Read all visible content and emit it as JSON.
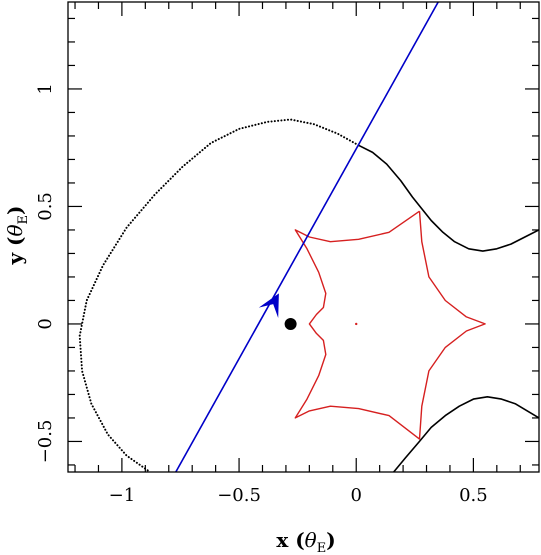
{
  "chart_data": {
    "type": "line",
    "title": "",
    "xlabel": {
      "main": "x (",
      "greek": "θ",
      "sub": "E",
      "close": ")"
    },
    "ylabel": {
      "main": "y (",
      "greek": "θ",
      "sub": "E",
      "close": ")"
    },
    "xlim": [
      -1.23,
      0.78
    ],
    "ylim": [
      -0.63,
      1.37
    ],
    "x_ticks": [
      {
        "value": -1,
        "label": "−1"
      },
      {
        "value": -0.5,
        "label": "−0.5"
      },
      {
        "value": 0,
        "label": "0"
      },
      {
        "value": 0.5,
        "label": "0.5"
      }
    ],
    "y_ticks": [
      {
        "value": -0.5,
        "label": "−0.5"
      },
      {
        "value": 0,
        "label": "0"
      },
      {
        "value": 0.5,
        "label": "0.5"
      },
      {
        "value": 1,
        "label": "1"
      }
    ],
    "minor_tick_step": 0.1,
    "grid": false,
    "colors": {
      "caustic": "#d62020",
      "critical_curve": "#000000",
      "trajectory": "#0000c8",
      "lens": "#000000"
    },
    "series": [
      {
        "role": "critical-curve-dotted",
        "style": "dotted",
        "points": [
          [
            0.01,
            0.76
          ],
          [
            -0.08,
            0.81
          ],
          [
            -0.18,
            0.85
          ],
          [
            -0.28,
            0.87
          ],
          [
            -0.38,
            0.86
          ],
          [
            -0.5,
            0.83
          ],
          [
            -0.62,
            0.77
          ],
          [
            -0.74,
            0.67
          ],
          [
            -0.86,
            0.55
          ],
          [
            -0.98,
            0.41
          ],
          [
            -1.08,
            0.25
          ],
          [
            -1.15,
            0.1
          ],
          [
            -1.18,
            -0.05
          ],
          [
            -1.17,
            -0.2
          ],
          [
            -1.13,
            -0.34
          ],
          [
            -1.06,
            -0.47
          ],
          [
            -0.98,
            -0.56
          ],
          [
            -0.88,
            -0.63
          ]
        ]
      },
      {
        "role": "critical-curve-upper",
        "style": "solid",
        "points": [
          [
            0.01,
            0.76
          ],
          [
            0.07,
            0.73
          ],
          [
            0.13,
            0.68
          ],
          [
            0.19,
            0.61
          ],
          [
            0.24,
            0.54
          ],
          [
            0.28,
            0.49
          ],
          [
            0.32,
            0.44
          ],
          [
            0.37,
            0.39
          ],
          [
            0.42,
            0.35
          ],
          [
            0.48,
            0.32
          ],
          [
            0.54,
            0.31
          ],
          [
            0.6,
            0.32
          ],
          [
            0.66,
            0.34
          ],
          [
            0.72,
            0.37
          ],
          [
            0.78,
            0.4
          ]
        ]
      },
      {
        "role": "critical-curve-lower",
        "style": "solid",
        "points": [
          [
            0.16,
            -0.63
          ],
          [
            0.21,
            -0.57
          ],
          [
            0.27,
            -0.5
          ],
          [
            0.32,
            -0.44
          ],
          [
            0.38,
            -0.39
          ],
          [
            0.44,
            -0.35
          ],
          [
            0.5,
            -0.32
          ],
          [
            0.56,
            -0.31
          ],
          [
            0.62,
            -0.32
          ],
          [
            0.68,
            -0.34
          ],
          [
            0.73,
            -0.37
          ],
          [
            0.78,
            -0.4
          ]
        ]
      },
      {
        "role": "caustic",
        "style": "solid",
        "points": [
          [
            0.27,
            0.48
          ],
          [
            0.14,
            0.39
          ],
          [
            0.01,
            0.36
          ],
          [
            -0.11,
            0.35
          ],
          [
            -0.2,
            0.37
          ],
          [
            -0.26,
            0.4
          ],
          [
            -0.21,
            0.32
          ],
          [
            -0.16,
            0.22
          ],
          [
            -0.13,
            0.13
          ],
          [
            -0.14,
            0.07
          ],
          [
            -0.17,
            0.04
          ],
          [
            -0.2,
            0.0
          ],
          [
            -0.17,
            -0.04
          ],
          [
            -0.14,
            -0.07
          ],
          [
            -0.13,
            -0.13
          ],
          [
            -0.16,
            -0.22
          ],
          [
            -0.21,
            -0.32
          ],
          [
            -0.26,
            -0.4
          ],
          [
            -0.2,
            -0.37
          ],
          [
            -0.11,
            -0.35
          ],
          [
            0.01,
            -0.36
          ],
          [
            0.14,
            -0.39
          ],
          [
            0.27,
            -0.49
          ],
          [
            0.28,
            -0.35
          ],
          [
            0.31,
            -0.2
          ],
          [
            0.38,
            -0.1
          ],
          [
            0.47,
            -0.03
          ],
          [
            0.55,
            0.0
          ],
          [
            0.47,
            0.03
          ],
          [
            0.38,
            0.1
          ],
          [
            0.31,
            0.2
          ],
          [
            0.28,
            0.35
          ],
          [
            0.27,
            0.48
          ]
        ]
      },
      {
        "role": "source-trajectory",
        "style": "solid",
        "points": [
          [
            -0.77,
            -0.63
          ],
          [
            0.35,
            1.37
          ]
        ]
      }
    ],
    "markers": [
      {
        "role": "lens-mass",
        "shape": "circle",
        "point": [
          -0.28,
          0.0
        ]
      },
      {
        "role": "secondary-mass",
        "shape": "dot",
        "point": [
          0.0,
          0.0
        ]
      },
      {
        "role": "direction-arrow",
        "shape": "arrowhead",
        "point": [
          -0.33,
          0.13
        ],
        "direction_point": [
          -0.4,
          0.0
        ]
      }
    ]
  }
}
